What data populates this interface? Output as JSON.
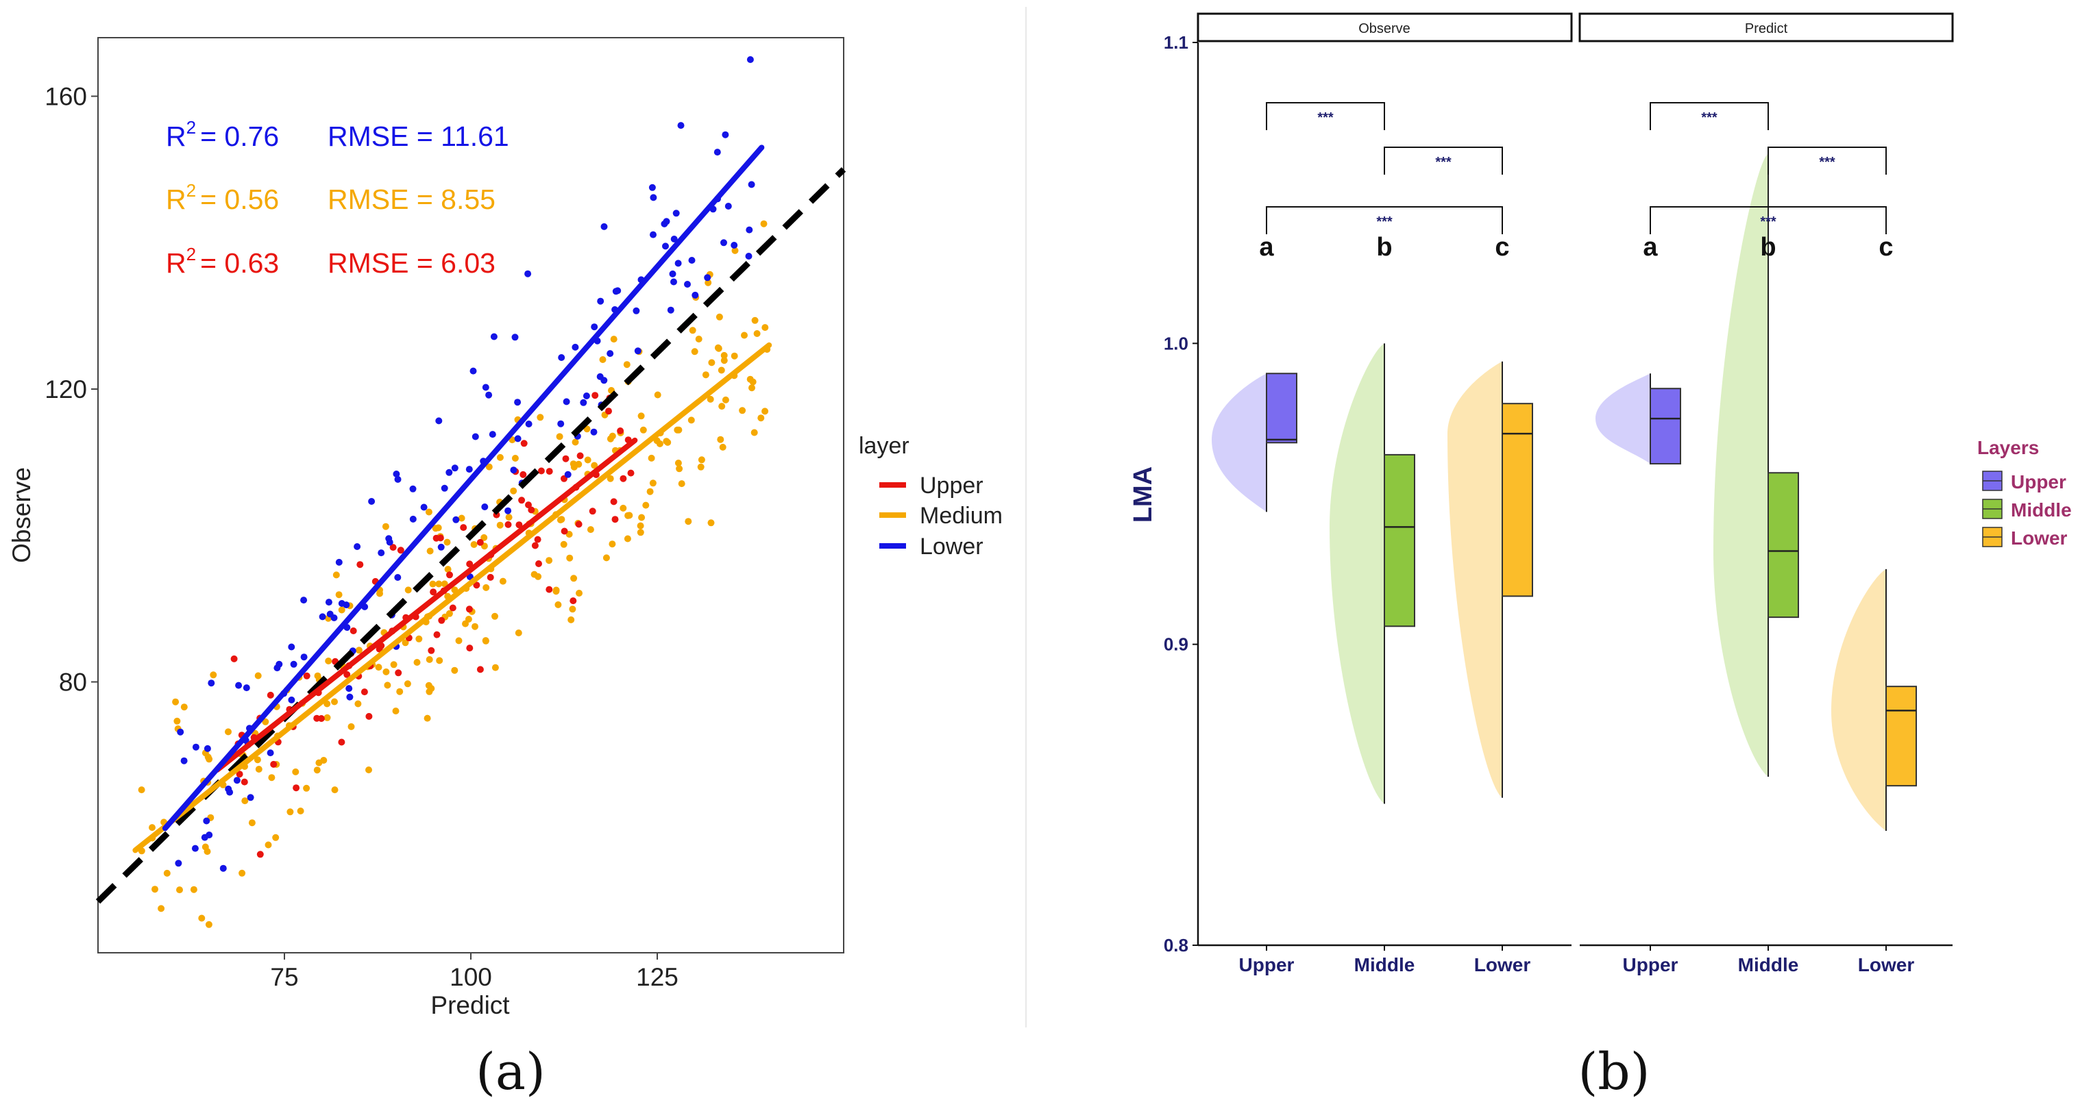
{
  "panel_labels": {
    "a": "(a)",
    "b": "(b)"
  },
  "chart_data": [
    {
      "type": "scatter",
      "title": "",
      "xlabel": "Predict",
      "ylabel": "Observe",
      "xlim": [
        50,
        150
      ],
      "ylim": [
        43,
        168
      ],
      "xticks": [
        75,
        100,
        125
      ],
      "yticks": [
        80,
        120,
        160
      ],
      "grid": false,
      "reference_line": {
        "type": "1:1",
        "style": "dashed",
        "color": "#000000"
      },
      "legend": {
        "title": "layer",
        "position": "right",
        "entries": [
          {
            "name": "Upper",
            "color": "#e8150f"
          },
          {
            "name": "Medium",
            "color": "#f5a800"
          },
          {
            "name": "Lower",
            "color": "#1414e6"
          }
        ]
      },
      "annotations": [
        {
          "r2_label": "R",
          "r2_sup": "2",
          "r2_value": "= 0.76",
          "rmse": "RMSE = 11.61",
          "color": "#1414e6"
        },
        {
          "r2_label": "R",
          "r2_sup": "2",
          "r2_value": "= 0.56",
          "rmse": "RMSE =  8.55",
          "color": "#f5a800"
        },
        {
          "r2_label": "R",
          "r2_sup": "2",
          "r2_value": "= 0.63",
          "rmse": "RMSE =  6.03",
          "color": "#e8150f"
        }
      ],
      "series": [
        {
          "name": "Upper",
          "color": "#e8150f",
          "fit": {
            "x": [
              66,
              122
            ],
            "y": [
              68,
              113
            ]
          },
          "approx_trend": {
            "x_range": [
              66,
              122
            ],
            "slope": 0.8,
            "intercept": 15.2,
            "noise": 6,
            "n": 90,
            "seed": 11
          }
        },
        {
          "name": "Medium",
          "color": "#f5a800",
          "fit": {
            "x": [
              55,
              140
            ],
            "y": [
              57,
              126
            ]
          },
          "approx_trend": {
            "x_range": [
              55,
              140
            ],
            "slope": 0.81,
            "intercept": 12.4,
            "noise": 8,
            "n": 260,
            "seed": 23
          }
        },
        {
          "name": "Lower",
          "color": "#1414e6",
          "fit": {
            "x": [
              59,
              139
            ],
            "y": [
              60,
              153
            ]
          },
          "approx_trend": {
            "x_range": [
              59,
              139
            ],
            "slope": 1.16,
            "intercept": -8.5,
            "noise": 7,
            "n": 130,
            "seed": 37
          }
        }
      ]
    },
    {
      "type": "raincloud-box",
      "ylabel": "LMA",
      "ylim": [
        0.8,
        1.1
      ],
      "yticks": [
        0.8,
        0.9,
        1.0,
        1.1
      ],
      "ytick_labels": [
        "0.8",
        "0.9",
        "1.0",
        "1.1"
      ],
      "facets": [
        "Observe",
        "Predict"
      ],
      "categories": [
        "Upper",
        "Middle",
        "Lower"
      ],
      "legend": {
        "title": "Layers",
        "position": "right",
        "entries": [
          {
            "name": "Upper",
            "color": "#7b6cf0",
            "light": "#d4d0fb"
          },
          {
            "name": "Middle",
            "color": "#8dc63f",
            "light": "#dcefc3"
          },
          {
            "name": "Lower",
            "color": "#fbbd2a",
            "light": "#fde6b2"
          }
        ]
      },
      "boxes": [
        {
          "facet": "Observe",
          "category": "Upper",
          "min": 0.944,
          "q1": 0.967,
          "median": 0.968,
          "q3": 0.99,
          "max": 0.99
        },
        {
          "facet": "Observe",
          "category": "Middle",
          "min": 0.847,
          "q1": 0.906,
          "median": 0.939,
          "q3": 0.963,
          "max": 1.0
        },
        {
          "facet": "Observe",
          "category": "Lower",
          "min": 0.849,
          "q1": 0.916,
          "median": 0.97,
          "q3": 0.98,
          "max": 0.994
        },
        {
          "facet": "Predict",
          "category": "Upper",
          "min": 0.96,
          "q1": 0.96,
          "median": 0.975,
          "q3": 0.985,
          "max": 0.99
        },
        {
          "facet": "Predict",
          "category": "Middle",
          "min": 0.856,
          "q1": 0.909,
          "median": 0.931,
          "q3": 0.957,
          "max": 1.063
        },
        {
          "facet": "Predict",
          "category": "Lower",
          "min": 0.838,
          "q1": 0.853,
          "median": 0.878,
          "q3": 0.886,
          "max": 0.925
        }
      ],
      "significance": [
        {
          "from": "Upper",
          "to": "Middle",
          "label": "***"
        },
        {
          "from": "Middle",
          "to": "Lower",
          "label": "***"
        },
        {
          "from": "Upper",
          "to": "Lower",
          "label": "***"
        }
      ],
      "group_letters": [
        "a",
        "b",
        "c"
      ]
    }
  ]
}
